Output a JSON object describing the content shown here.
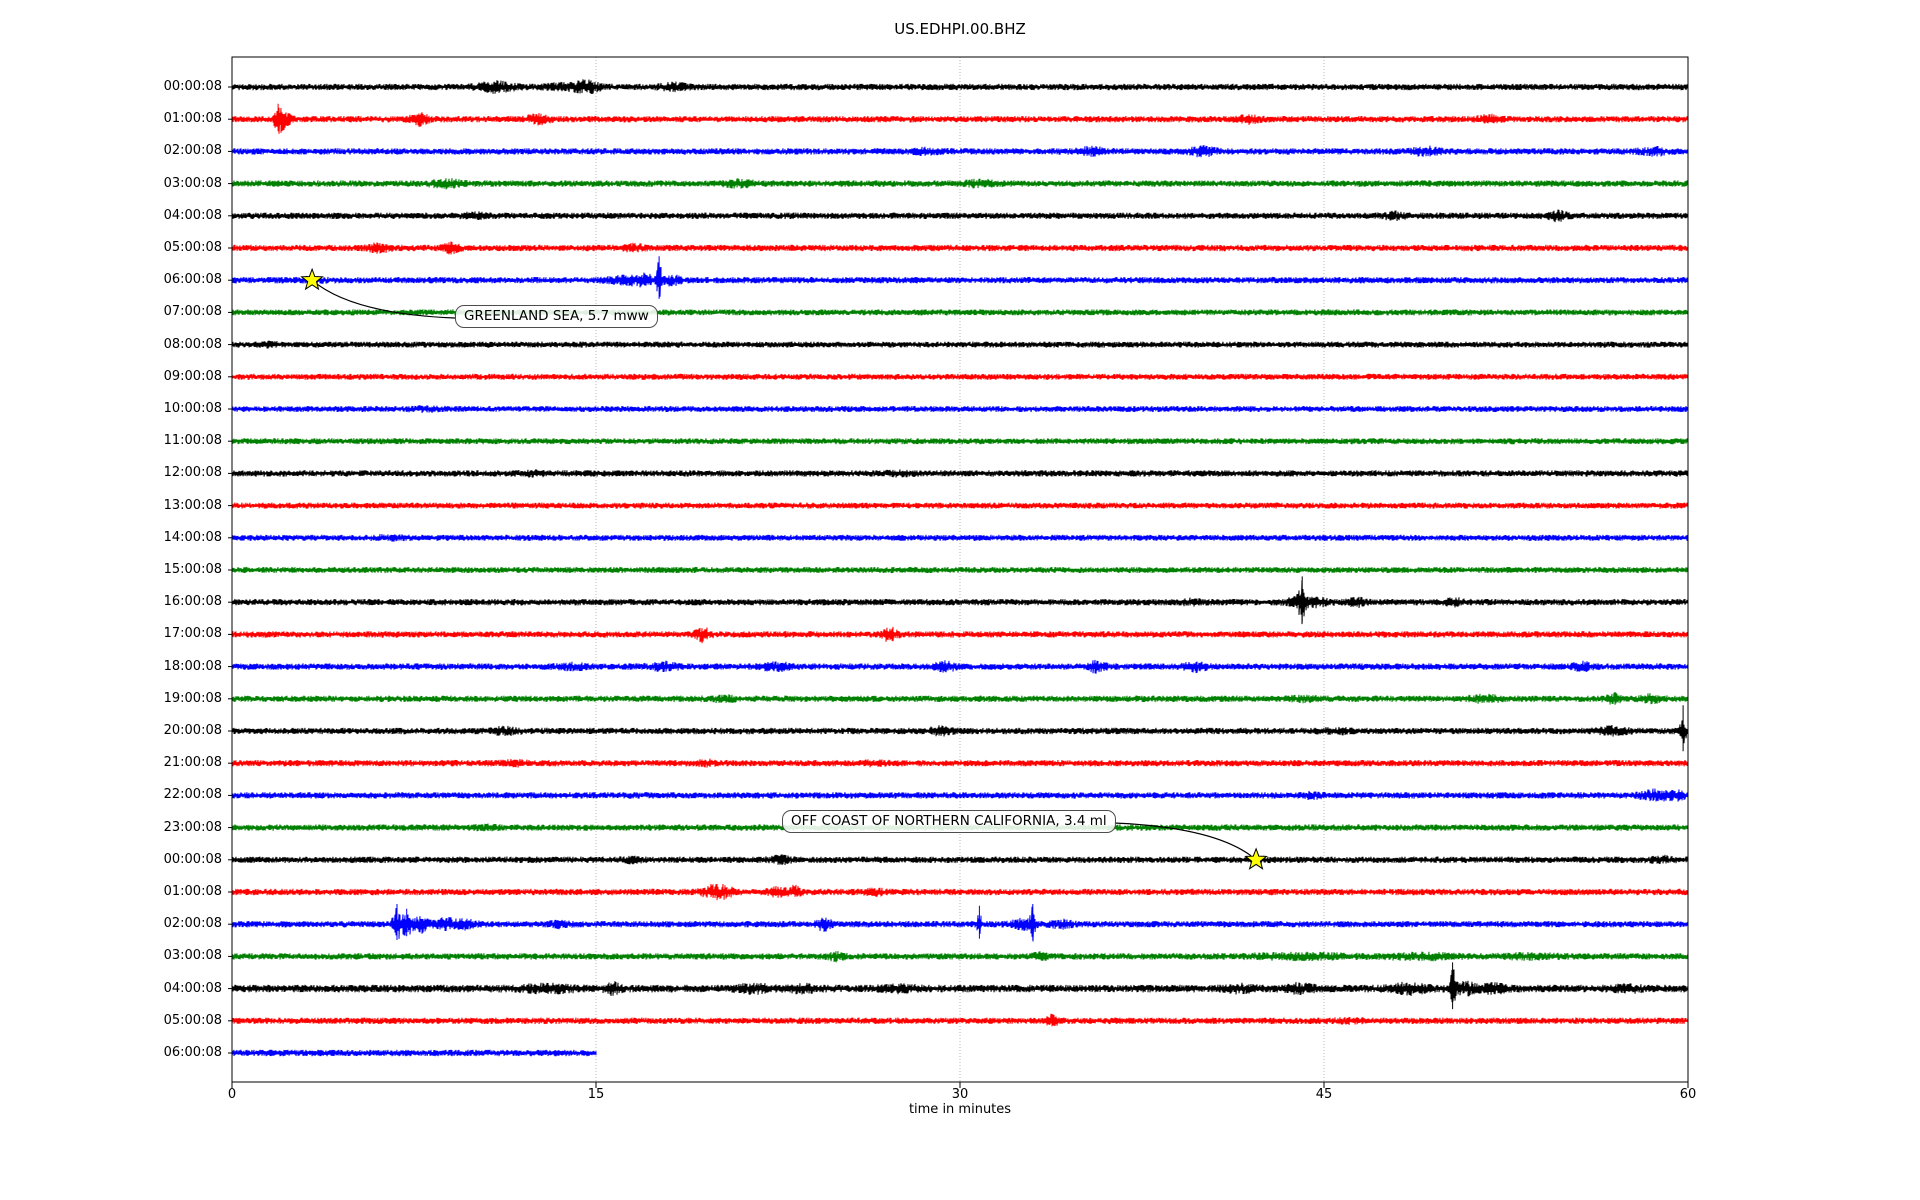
{
  "title": "US.EDHPI.00.BHZ",
  "axes": {
    "xlabel": "time in minutes",
    "x_tick_labels": [
      "0",
      "15",
      "30",
      "45",
      "60"
    ]
  },
  "palette": {
    "black": "#000000",
    "red": "#ff0000",
    "blue": "#0000ff",
    "green": "#008000",
    "star_fill": "#ffff00",
    "star_edge": "#000000",
    "grid": "#b0b0b0",
    "box_border": "#4d4d4d"
  },
  "annotations": [
    {
      "id": "greenland",
      "text": "GREENLAND SEA, 5.7 mww",
      "row": 6,
      "minute": 3.3
    },
    {
      "id": "california",
      "text": "OFF COAST OF NORTHERN CALIFORNIA, 3.4 ml",
      "row": 24,
      "minute": 42.2
    }
  ],
  "chart_data": {
    "type": "line",
    "title": "US.EDHPI.00.BHZ",
    "xlabel": "time in minutes",
    "xlim": [
      0,
      60
    ],
    "x_ticks": [
      0,
      15,
      30,
      45,
      60
    ],
    "grid": "dotted vertical at 15/30/45",
    "legend": "none",
    "trace_color_cycle": [
      "black",
      "red",
      "blue",
      "green"
    ],
    "marked_events": [
      {
        "label": "GREENLAND SEA, 5.7 mww",
        "row_time": "06:00:08",
        "minute": 3.3
      },
      {
        "label": "OFF COAST OF NORTHERN CALIFORNIA, 3.4 ml",
        "row_time": "00:00:08",
        "minute": 42.2
      }
    ],
    "rows": [
      {
        "label": "00:00:08",
        "color": "black",
        "extent_min": 60,
        "base_amp": 3.2,
        "events": [
          [
            10.9,
            2.2,
            0.5
          ],
          [
            13.5,
            1.6,
            0.4
          ],
          [
            14.6,
            2.6,
            0.35
          ],
          [
            18.2,
            1.8,
            0.4
          ]
        ]
      },
      {
        "label": "01:00:08",
        "color": "red",
        "extent_min": 60,
        "base_amp": 3.2,
        "events": [
          [
            1.9,
            4.2,
            0.12
          ],
          [
            2.2,
            3.0,
            0.2
          ],
          [
            7.7,
            2.6,
            0.25
          ],
          [
            12.6,
            2.2,
            0.3
          ],
          [
            41.9,
            1.8,
            0.3
          ],
          [
            51.8,
            1.8,
            0.3
          ]
        ]
      },
      {
        "label": "02:00:08",
        "color": "blue",
        "extent_min": 60,
        "base_amp": 3.2,
        "events": [
          [
            28.6,
            1.5,
            0.4
          ],
          [
            35.4,
            1.9,
            0.4
          ],
          [
            40.0,
            2.1,
            0.35
          ],
          [
            49.2,
            1.9,
            0.4
          ],
          [
            58.6,
            1.8,
            0.4
          ]
        ]
      },
      {
        "label": "03:00:08",
        "color": "green",
        "extent_min": 60,
        "base_amp": 3.2,
        "events": [
          [
            8.8,
            1.9,
            0.4
          ],
          [
            20.9,
            1.7,
            0.4
          ],
          [
            30.8,
            1.7,
            0.4
          ]
        ]
      },
      {
        "label": "04:00:08",
        "color": "black",
        "extent_min": 60,
        "base_amp": 3.2,
        "events": [
          [
            10.0,
            1.5,
            0.3
          ],
          [
            47.9,
            1.8,
            0.3
          ],
          [
            54.6,
            2.2,
            0.25
          ]
        ]
      },
      {
        "label": "05:00:08",
        "color": "red",
        "extent_min": 60,
        "base_amp": 3.2,
        "events": [
          [
            6.1,
            2.0,
            0.3
          ],
          [
            9.0,
            2.1,
            0.25
          ],
          [
            16.6,
            1.7,
            0.3
          ]
        ]
      },
      {
        "label": "06:00:08",
        "color": "blue",
        "extent_min": 60,
        "base_amp": 3.2,
        "events": [
          [
            3.3,
            1.4,
            0.3
          ],
          [
            16.2,
            1.8,
            0.5
          ],
          [
            17.0,
            2.2,
            0.3
          ],
          [
            17.6,
            6.5,
            0.07
          ],
          [
            18.1,
            2.0,
            0.3
          ]
        ]
      },
      {
        "label": "07:00:08",
        "color": "green",
        "extent_min": 60,
        "base_amp": 3.0,
        "events": []
      },
      {
        "label": "08:00:08",
        "color": "black",
        "extent_min": 60,
        "base_amp": 3.0,
        "events": [
          [
            1.5,
            1.4,
            0.3
          ]
        ]
      },
      {
        "label": "09:00:08",
        "color": "red",
        "extent_min": 60,
        "base_amp": 3.0,
        "events": []
      },
      {
        "label": "10:00:08",
        "color": "blue",
        "extent_min": 60,
        "base_amp": 3.0,
        "events": [
          [
            8.0,
            1.4,
            0.4
          ]
        ]
      },
      {
        "label": "11:00:08",
        "color": "green",
        "extent_min": 60,
        "base_amp": 3.0,
        "events": []
      },
      {
        "label": "12:00:08",
        "color": "black",
        "extent_min": 60,
        "base_amp": 3.2,
        "events": [
          [
            12.4,
            1.5,
            0.3
          ],
          [
            27.5,
            1.3,
            0.4
          ]
        ]
      },
      {
        "label": "13:00:08",
        "color": "red",
        "extent_min": 60,
        "base_amp": 3.0,
        "events": []
      },
      {
        "label": "14:00:08",
        "color": "blue",
        "extent_min": 60,
        "base_amp": 3.0,
        "events": [
          [
            6.5,
            1.4,
            0.4
          ]
        ]
      },
      {
        "label": "15:00:08",
        "color": "green",
        "extent_min": 60,
        "base_amp": 3.0,
        "events": []
      },
      {
        "label": "16:00:08",
        "color": "black",
        "extent_min": 60,
        "base_amp": 3.2,
        "events": [
          [
            39.5,
            1.5,
            0.3
          ],
          [
            43.9,
            2.2,
            0.3
          ],
          [
            44.1,
            7.0,
            0.09
          ],
          [
            44.8,
            2.0,
            0.3
          ],
          [
            46.4,
            2.0,
            0.25
          ],
          [
            50.4,
            1.8,
            0.25
          ]
        ]
      },
      {
        "label": "17:00:08",
        "color": "red",
        "extent_min": 60,
        "base_amp": 3.2,
        "events": [
          [
            19.4,
            2.8,
            0.2
          ],
          [
            27.1,
            2.8,
            0.2
          ]
        ]
      },
      {
        "label": "18:00:08",
        "color": "blue",
        "extent_min": 60,
        "base_amp": 3.2,
        "events": [
          [
            14.0,
            1.6,
            0.4
          ],
          [
            17.8,
            1.9,
            0.4
          ],
          [
            22.4,
            1.9,
            0.4
          ],
          [
            29.4,
            2.0,
            0.3
          ],
          [
            35.6,
            2.3,
            0.25
          ],
          [
            39.7,
            2.0,
            0.3
          ],
          [
            55.6,
            1.9,
            0.3
          ]
        ]
      },
      {
        "label": "19:00:08",
        "color": "green",
        "extent_min": 60,
        "base_amp": 3.2,
        "events": [
          [
            20.3,
            1.5,
            0.4
          ],
          [
            44.2,
            1.5,
            0.4
          ],
          [
            51.6,
            1.8,
            0.4
          ],
          [
            56.9,
            2.3,
            0.2
          ],
          [
            58.5,
            1.8,
            0.3
          ]
        ]
      },
      {
        "label": "20:00:08",
        "color": "black",
        "extent_min": 60,
        "base_amp": 3.2,
        "events": [
          [
            11.2,
            1.7,
            0.4
          ],
          [
            29.2,
            1.9,
            0.3
          ],
          [
            45.5,
            1.5,
            0.4
          ],
          [
            56.9,
            1.9,
            0.4
          ],
          [
            59.8,
            7.0,
            0.07
          ]
        ]
      },
      {
        "label": "21:00:08",
        "color": "red",
        "extent_min": 60,
        "base_amp": 3.2,
        "events": [
          [
            11.6,
            1.7,
            0.3
          ],
          [
            19.6,
            1.5,
            0.3
          ],
          [
            26.5,
            1.4,
            0.3
          ]
        ]
      },
      {
        "label": "22:00:08",
        "color": "blue",
        "extent_min": 60,
        "base_amp": 3.2,
        "events": [
          [
            44.5,
            1.5,
            0.3
          ],
          [
            58.6,
            2.2,
            0.4
          ],
          [
            59.5,
            2.0,
            0.3
          ]
        ]
      },
      {
        "label": "23:00:08",
        "color": "green",
        "extent_min": 60,
        "base_amp": 3.2,
        "events": [
          [
            10.5,
            1.3,
            0.4
          ]
        ]
      },
      {
        "label": "00:00:08",
        "color": "black",
        "extent_min": 60,
        "base_amp": 3.2,
        "events": [
          [
            16.5,
            1.5,
            0.3
          ],
          [
            22.6,
            1.8,
            0.3
          ],
          [
            42.2,
            1.4,
            0.4
          ],
          [
            58.9,
            1.7,
            0.3
          ]
        ]
      },
      {
        "label": "01:00:08",
        "color": "red",
        "extent_min": 60,
        "base_amp": 3.2,
        "events": [
          [
            19.8,
            2.6,
            0.3
          ],
          [
            20.3,
            2.0,
            0.3
          ],
          [
            22.5,
            1.9,
            0.3
          ],
          [
            23.2,
            2.3,
            0.15
          ],
          [
            26.5,
            1.6,
            0.3
          ]
        ]
      },
      {
        "label": "02:00:08",
        "color": "blue",
        "extent_min": 60,
        "base_amp": 3.2,
        "events": [
          [
            6.8,
            5.5,
            0.12
          ],
          [
            7.2,
            4.2,
            0.15
          ],
          [
            7.8,
            3.0,
            0.2
          ],
          [
            8.8,
            2.4,
            0.3
          ],
          [
            9.6,
            2.0,
            0.3
          ],
          [
            13.5,
            1.6,
            0.3
          ],
          [
            24.4,
            2.6,
            0.2
          ],
          [
            30.8,
            5.0,
            0.06
          ],
          [
            32.6,
            2.2,
            0.3
          ],
          [
            33.0,
            5.5,
            0.07
          ],
          [
            34.2,
            1.8,
            0.3
          ]
        ]
      },
      {
        "label": "03:00:08",
        "color": "green",
        "extent_min": 60,
        "base_amp": 3.2,
        "events": [
          [
            24.9,
            2.0,
            0.2
          ],
          [
            33.3,
            1.8,
            0.2
          ],
          [
            44.0,
            1.5,
            1.5
          ],
          [
            49.0,
            1.6,
            1.0
          ],
          [
            53.5,
            1.4,
            0.8
          ]
        ]
      },
      {
        "label": "04:00:08",
        "color": "black",
        "extent_min": 60,
        "base_amp": 3.8,
        "events": [
          [
            13.0,
            1.6,
            0.8
          ],
          [
            15.7,
            2.2,
            0.2
          ],
          [
            21.5,
            1.7,
            0.5
          ],
          [
            23.5,
            1.8,
            0.4
          ],
          [
            27.5,
            1.5,
            0.5
          ],
          [
            41.5,
            1.6,
            0.4
          ],
          [
            44.0,
            1.8,
            0.4
          ],
          [
            48.5,
            2.0,
            0.5
          ],
          [
            50.3,
            6.0,
            0.08
          ],
          [
            50.8,
            2.2,
            0.3
          ],
          [
            52.0,
            1.8,
            0.4
          ],
          [
            57.5,
            1.5,
            0.4
          ]
        ]
      },
      {
        "label": "05:00:08",
        "color": "red",
        "extent_min": 60,
        "base_amp": 3.2,
        "events": [
          [
            33.8,
            2.4,
            0.15
          ],
          [
            46.0,
            1.3,
            0.4
          ]
        ]
      },
      {
        "label": "06:00:08",
        "color": "blue",
        "extent_min": 15,
        "base_amp": 3.2,
        "events": []
      }
    ]
  }
}
